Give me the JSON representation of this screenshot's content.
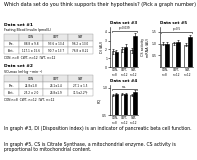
{
  "title": "Which data set do you think supports their hypothesis? (Pick a graph number)",
  "annotations": [
    "In graph #3, DI (Disposition index) is an indicator of pancreatic beta cell function.",
    "In graph #5, CS is Citrate Synthase, a mitochondrial enzyme. CS activity is proportional to mitochondrial content."
  ],
  "chart_data": [
    {
      "type": "table",
      "title": "Data set #1",
      "subtitle": "Fasting Blood Insulin (pmol/L)",
      "columns": [
        "CON",
        "CWT",
        "IWT"
      ],
      "rows": [
        "Pre-",
        "Post-"
      ],
      "cells": [
        [
          "88.8 ± 9.8",
          "93.6 ± 13.4",
          "96.2 ± 13.0"
        ],
        [
          "117.1 ± 15.6",
          "90.7 ± 13.7",
          "76.8 ± 8.21"
        ]
      ],
      "footnote": "CON, n=8  CWT, n=12  IWT, n=12"
    },
    {
      "type": "table",
      "title": "Data set #2",
      "subtitle": "VO₂max (ml·kg⁻¹·min⁻¹)",
      "columns": [
        "CON",
        "CWT",
        "IWT"
      ],
      "rows": [
        "Pre-",
        "Post-"
      ],
      "cells": [
        [
          "24.8±1.8",
          "26.1±1.4",
          "27.1 ± 1.5"
        ],
        [
          "25.2 ± 2.0",
          "26.8±1.9",
          "31.5±2.2*†"
        ]
      ],
      "footnote": "CON n=8  CWT, n=12  IWT, n=12"
    },
    {
      "type": "bar",
      "title": "Data set #3",
      "ylabel": "DI (AU)",
      "categories": [
        "CON,\nn=8",
        "CWT,\nn=12",
        "IWT,\nn=12"
      ],
      "series": [
        {
          "color": "white",
          "values": [
            1.8,
            2.0,
            1.9
          ],
          "errors": [
            0.3,
            0.3,
            0.3
          ]
        },
        {
          "color": "black",
          "values": [
            1.7,
            2.3,
            3.5
          ],
          "errors": [
            0.25,
            0.3,
            0.35
          ]
        }
      ],
      "ylim": [
        0,
        4.5
      ],
      "yticks": [
        0,
        1,
        2,
        3,
        4
      ],
      "annotations": [
        {
          "text": "p=0.039",
          "y": 4.1
        }
      ]
    },
    {
      "type": "bar",
      "title": "Data set #5",
      "ylabel": "CS activity\nmRNA (AU)",
      "categories": [
        "CON,\nn=8",
        "CWT,\nn=12",
        "IWT,\nn=12"
      ],
      "series": [
        {
          "color": "white",
          "values": [
            1.0,
            1.02,
            0.95
          ],
          "errors": [
            0.07,
            0.07,
            0.07
          ]
        },
        {
          "color": "black",
          "values": [
            0.98,
            1.08,
            1.28
          ],
          "errors": [
            0.07,
            0.08,
            0.1
          ]
        }
      ],
      "ylim": [
        0,
        1.7
      ],
      "yticks": [
        0.5,
        1.0,
        1.5
      ],
      "annotations": [
        {
          "text": "p=0.5",
          "y": 1.5
        }
      ]
    },
    {
      "type": "bar",
      "title": "Data set #4",
      "ylabel": "RQ",
      "categories": [
        "CON,\nn=8",
        "CWT,\nn=12",
        "IWT,\nn=12"
      ],
      "series": [
        {
          "color": "white",
          "values": [
            0.87,
            0.88,
            0.86
          ],
          "errors": [
            0.02,
            0.02,
            0.02
          ]
        },
        {
          "color": "black",
          "values": [
            0.88,
            0.89,
            0.92
          ],
          "errors": [
            0.02,
            0.02,
            0.03
          ]
        }
      ],
      "ylim": [
        0.5,
        1.05
      ],
      "yticks": [
        0.5,
        1.0
      ],
      "annotations": [
        {
          "text": "n.s.",
          "y": 0.97
        }
      ]
    }
  ]
}
